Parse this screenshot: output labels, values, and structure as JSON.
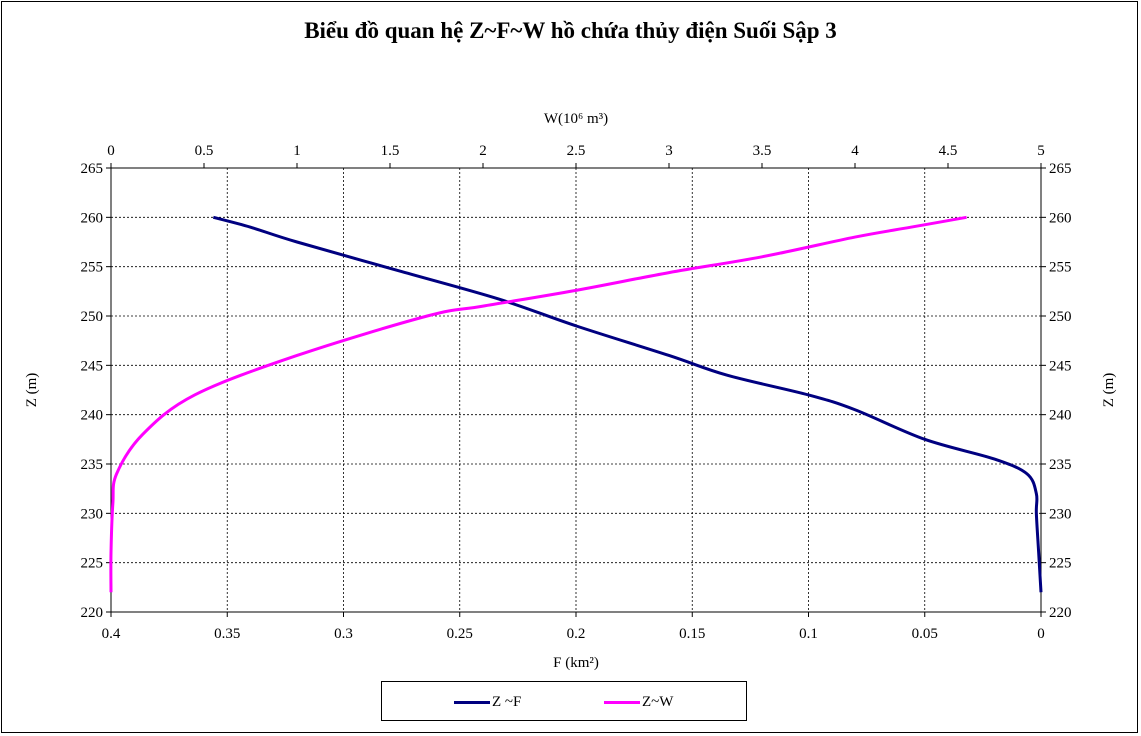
{
  "chart_data": {
    "type": "line",
    "title": "Biểu đồ quan hệ Z~F~W  hồ chứa thủy điện Suối Sập 3",
    "ylabel_left": "Z (m)",
    "ylabel_right": "Z (m)",
    "xlabel_bottom": "F (km²)",
    "xlabel_top": "W(10⁶ m³)",
    "ylim": [
      220,
      265
    ],
    "y_ticks": [
      "265",
      "260",
      "255",
      "250",
      "245",
      "240",
      "235",
      "230",
      "225",
      "220"
    ],
    "bottom_axis": {
      "range": [
        0.4,
        0
      ],
      "reversed": true,
      "ticks": [
        "0.4",
        "0.35",
        "0.3",
        "0.25",
        "0.2",
        "0.15",
        "0.1",
        "0.05",
        "0"
      ]
    },
    "top_axis": {
      "range": [
        0,
        5
      ],
      "ticks": [
        "0",
        "0.5",
        "1",
        "1.5",
        "2",
        "2.5",
        "3",
        "3.5",
        "4",
        "4.5",
        "5"
      ]
    },
    "grid": true,
    "legend_position": "bottom",
    "series": [
      {
        "name": "Z ~F",
        "axis": "bottom",
        "color": "#000080",
        "points": [
          {
            "x": 0,
            "y": 222
          },
          {
            "x": 0.001,
            "y": 226
          },
          {
            "x": 0.002,
            "y": 230
          },
          {
            "x": 0.002,
            "y": 232
          },
          {
            "x": 0.006,
            "y": 234
          },
          {
            "x": 0.02,
            "y": 235.5
          },
          {
            "x": 0.05,
            "y": 237.5
          },
          {
            "x": 0.08,
            "y": 240.5
          },
          {
            "x": 0.1,
            "y": 242
          },
          {
            "x": 0.135,
            "y": 244
          },
          {
            "x": 0.16,
            "y": 246
          },
          {
            "x": 0.2,
            "y": 249
          },
          {
            "x": 0.233,
            "y": 251.7
          },
          {
            "x": 0.275,
            "y": 254.5
          },
          {
            "x": 0.32,
            "y": 257.5
          },
          {
            "x": 0.34,
            "y": 259
          },
          {
            "x": 0.356,
            "y": 260
          }
        ]
      },
      {
        "name": "Z~W",
        "axis": "top",
        "color": "#FF00FF",
        "points": [
          {
            "x": 0,
            "y": 222
          },
          {
            "x": 0,
            "y": 226
          },
          {
            "x": 0.01,
            "y": 231
          },
          {
            "x": 0.03,
            "y": 234
          },
          {
            "x": 0.17,
            "y": 238
          },
          {
            "x": 0.45,
            "y": 242
          },
          {
            "x": 1.0,
            "y": 246
          },
          {
            "x": 1.7,
            "y": 250
          },
          {
            "x": 2.0,
            "y": 251
          },
          {
            "x": 2.5,
            "y": 252.6
          },
          {
            "x": 3.0,
            "y": 254.4
          },
          {
            "x": 3.5,
            "y": 256
          },
          {
            "x": 4.0,
            "y": 258
          },
          {
            "x": 4.3,
            "y": 259
          },
          {
            "x": 4.6,
            "y": 260
          }
        ]
      }
    ]
  }
}
